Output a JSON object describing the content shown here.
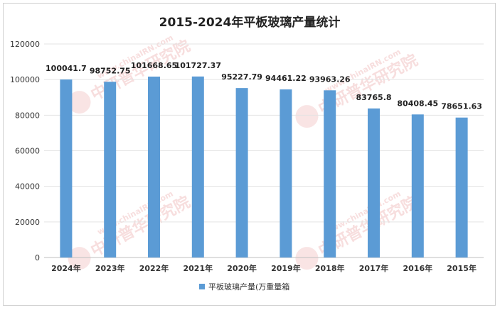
{
  "chart_data": {
    "type": "bar",
    "title": "2015-2024年平板玻璃产量统计",
    "categories": [
      "2024年",
      "2023年",
      "2022年",
      "2021年",
      "2020年",
      "2019年",
      "2018年",
      "2017年",
      "2016年",
      "2015年"
    ],
    "series": [
      {
        "name": "平板玻璃产量(万重量箱",
        "color": "#5b9bd5",
        "values": [
          100041.7,
          98752.75,
          101668.65,
          101727.37,
          95227.79,
          94461.22,
          93963.26,
          83765.8,
          80408.45,
          78651.63
        ],
        "labels": [
          "100041.7",
          "98752.75",
          "101668.65",
          "101727.37",
          "95227.79",
          "94461.22",
          "93963.26",
          "83765.8",
          "80408.45",
          "78651.63"
        ]
      }
    ],
    "ylim": [
      0,
      120000
    ],
    "yticks": [
      0,
      20000,
      40000,
      60000,
      80000,
      100000,
      120000
    ],
    "grid": true,
    "legend_position": "bottom"
  },
  "watermark": {
    "brand": "中研普华研究院",
    "url": "www.chinaIRN.com",
    "logo_text": "CIRN"
  }
}
